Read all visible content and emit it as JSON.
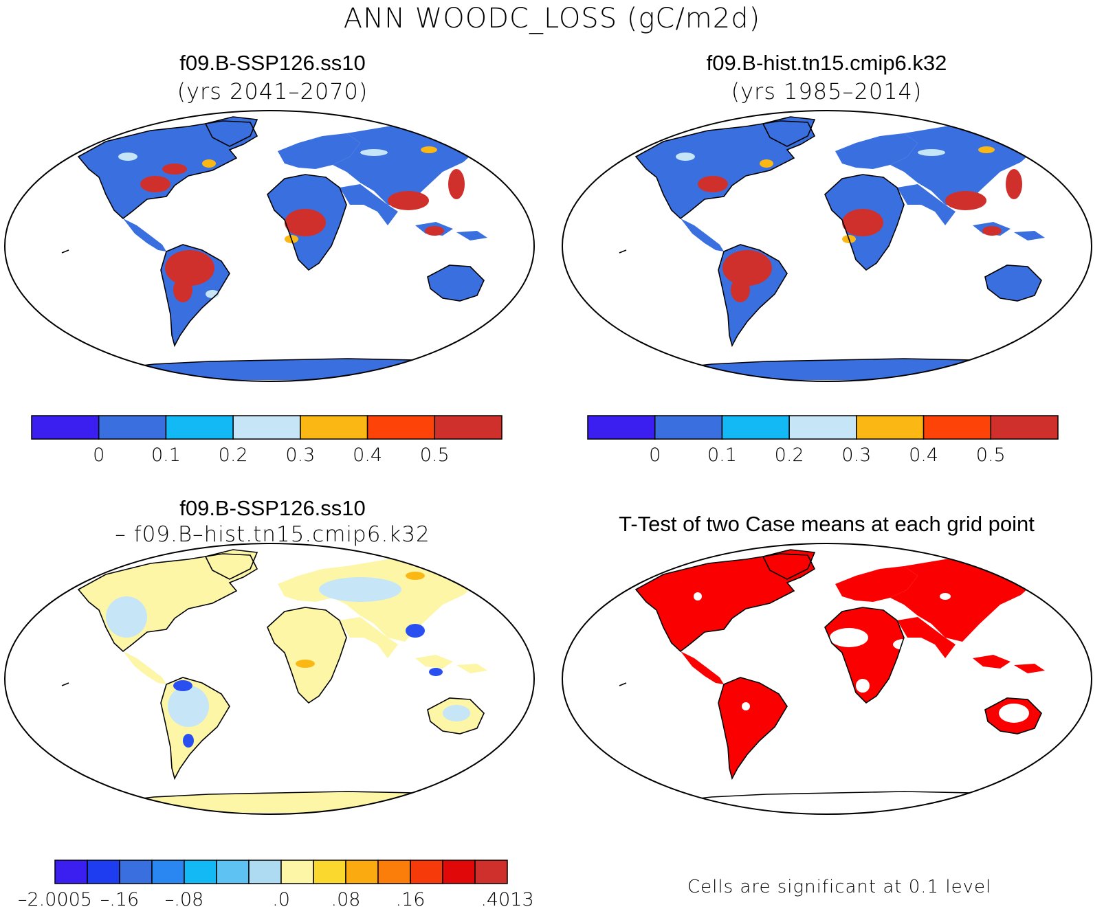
{
  "title": "ANN WOODC_LOSS (gC/m2d)",
  "panels": {
    "top_left": {
      "case": "f09.B-SSP126.ss10",
      "years": "(yrs 2041–2070)"
    },
    "top_right": {
      "case": "f09.B-hist.tn15.cmip6.k32",
      "years": "(yrs 1985–2014)"
    },
    "bottom_left": {
      "case": "f09.B-SSP126.ss10",
      "minus_case": "– f09.B–hist.tn15.cmip6.k32"
    },
    "bottom_right": {
      "title": "T-Test of two Case means at each grid point",
      "note": "Cells are significant at 0.1 level"
    }
  },
  "colorbars": {
    "absolute": {
      "colors": [
        "#3b1ff0",
        "#3a6fe0",
        "#13b9f5",
        "#c6e6f7",
        "#fbb815",
        "#fd4308",
        "#d0302b"
      ],
      "labels": [
        "0",
        "0.1",
        "0.2",
        "0.3",
        "0.4",
        "0.5"
      ]
    },
    "difference": {
      "colors": [
        "#3b1ff0",
        "#1f3df0",
        "#3a6fe0",
        "#2a86f0",
        "#13b9f5",
        "#5ec2f2",
        "#aedaf2",
        "#fcf6a6",
        "#fbd82e",
        "#fbaa10",
        "#fb7d0a",
        "#f63a0a",
        "#e00808",
        "#d0302b"
      ],
      "labels": [
        "–2.0005",
        "–.16",
        "–.08",
        ".0",
        ".08",
        ".16",
        ".4013"
      ]
    }
  },
  "map_colors": {
    "ocean": "#ffffff",
    "land_absolute": "#3a6fe0",
    "land_difference": "#fcf6a6",
    "significant": "#fb0000",
    "high": "#d0302b",
    "mid": "#fbb815",
    "light": "#c6e6f7",
    "cyan": "#13b9f5",
    "negative": "#2a4ff0"
  }
}
